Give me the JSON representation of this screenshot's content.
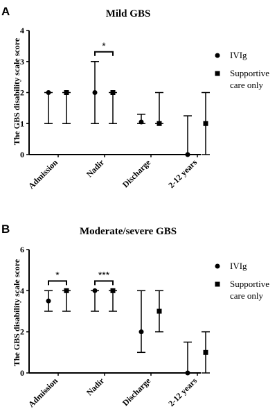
{
  "chart_data": [
    {
      "type": "scatter",
      "panel": "A",
      "title": "Mild GBS",
      "ylabel": "The GBS disability scale score",
      "xlabel": "",
      "ylim": [
        0,
        4
      ],
      "yticks": [
        "0",
        "1",
        "2",
        "3",
        "4"
      ],
      "categories": [
        "Admission",
        "Nadir",
        "Discharge",
        "2-12 years"
      ],
      "series": [
        {
          "name": "IVIg",
          "marker": "circle",
          "values": [
            2,
            2,
            1.05,
            0
          ],
          "err_low": [
            1,
            1,
            1,
            0
          ],
          "err_high": [
            2,
            3,
            1.3,
            1.25
          ]
        },
        {
          "name": "Supportive care only",
          "marker": "square",
          "values": [
            2,
            2,
            1,
            1
          ],
          "err_low": [
            1,
            1,
            1,
            0
          ],
          "err_high": [
            2,
            2,
            2,
            2
          ]
        }
      ],
      "legend": {
        "position": "right",
        "entries": [
          {
            "lines": [
              "IVIg"
            ],
            "marker": "circle"
          },
          {
            "lines": [
              "Supportive",
              "care only"
            ],
            "marker": "square"
          }
        ]
      },
      "significance": [
        {
          "category": "Nadir",
          "label": "*"
        }
      ]
    },
    {
      "type": "scatter",
      "panel": "B",
      "title": "Moderate/severe GBS",
      "ylabel": "The GBS disability scale score",
      "xlabel": "",
      "ylim": [
        0,
        6
      ],
      "yticks": [
        "0",
        "2",
        "4",
        "6"
      ],
      "categories": [
        "Admission",
        "Nadir",
        "Discharge",
        "2-12 years"
      ],
      "series": [
        {
          "name": "IVIg",
          "marker": "circle",
          "values": [
            3.5,
            4,
            2,
            0
          ],
          "err_low": [
            3,
            3,
            1,
            0
          ],
          "err_high": [
            4,
            4,
            4,
            1.5
          ]
        },
        {
          "name": "Supportive care only",
          "marker": "square",
          "values": [
            4,
            4,
            3,
            1
          ],
          "err_low": [
            3,
            3,
            2,
            0
          ],
          "err_high": [
            4,
            4,
            4,
            2
          ]
        }
      ],
      "legend": {
        "position": "right",
        "entries": [
          {
            "lines": [
              "IVIg"
            ],
            "marker": "circle"
          },
          {
            "lines": [
              "Supportive",
              "care only"
            ],
            "marker": "square"
          }
        ]
      },
      "significance": [
        {
          "category": "Admission",
          "label": "*"
        },
        {
          "category": "Nadir",
          "label": "***"
        }
      ]
    }
  ]
}
